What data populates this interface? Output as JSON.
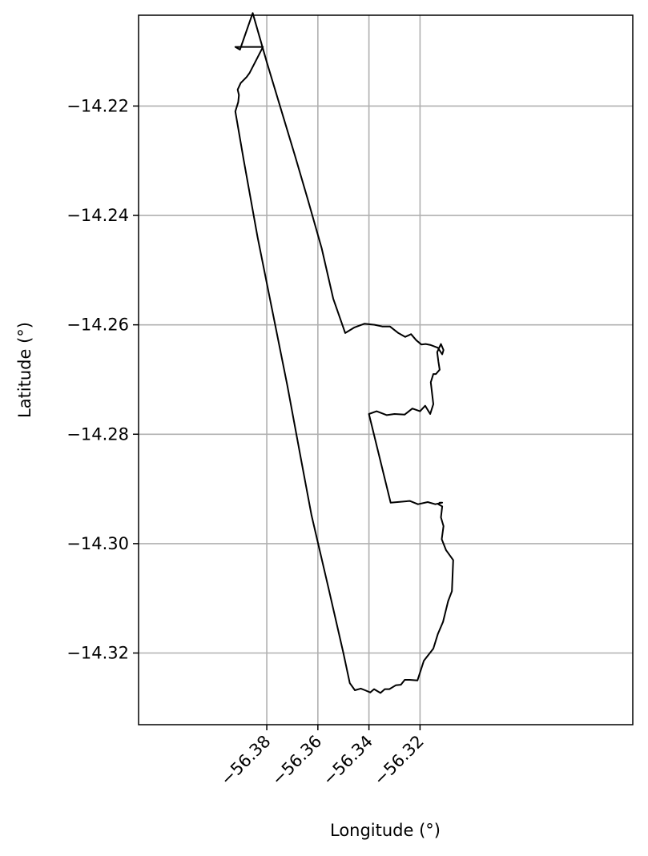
{
  "chart_data": {
    "type": "line",
    "title": "",
    "xlabel": "Longitude (°)",
    "ylabel": "Latitude (°)",
    "xlim": [
      -56.4302,
      -56.2367
    ],
    "ylim": [
      -14.3331,
      -14.2034
    ],
    "xticks": [
      -56.38,
      -56.36,
      -56.34,
      -56.32
    ],
    "xtick_labels": [
      "−56.38",
      "−56.36",
      "−56.34",
      "−56.32"
    ],
    "yticks": [
      -14.22,
      -14.24,
      -14.26,
      -14.28,
      -14.3,
      -14.32
    ],
    "ytick_labels": [
      "−14.22",
      "−14.24",
      "−14.26",
      "−14.28",
      "−14.30",
      "−14.32"
    ],
    "grid": true,
    "line_color": "#000000",
    "grid_color": "#b0b0b0",
    "series": [
      {
        "x": [
          -56.3815,
          -56.3848,
          -56.3868,
          -56.3879,
          -56.3902,
          -56.3914,
          -56.3909,
          -56.3912,
          -56.3923,
          -56.389,
          -56.3836,
          -56.378,
          -56.372,
          -56.3665,
          -56.3625,
          -56.356,
          -56.35,
          -56.3475,
          -56.3455,
          -56.3432,
          -56.3415,
          -56.3395,
          -56.338,
          -56.3355,
          -56.3338,
          -56.332,
          -56.3295,
          -56.3275,
          -56.326,
          -56.324,
          -56.321,
          -56.3185,
          -56.3148,
          -56.313,
          -56.311,
          -56.309,
          -56.3075,
          -56.307,
          -56.3098,
          -56.3115,
          -56.3108,
          -56.3118,
          -56.3113,
          -56.3128,
          -56.3123,
          -56.3113,
          -56.314,
          -56.317,
          -56.3208,
          -56.324,
          -56.3315,
          -56.34,
          -56.337,
          -56.333,
          -56.33,
          -56.326,
          -56.323,
          -56.32,
          -56.318,
          -56.316,
          -56.3148,
          -56.3158,
          -56.3148,
          -56.3138,
          -56.3123,
          -56.3128,
          -56.3133,
          -56.3118,
          -56.3108,
          -56.3113,
          -56.313,
          -56.3158,
          -56.3178,
          -56.3195,
          -56.3215,
          -56.3235,
          -56.3258,
          -56.3285,
          -56.3318,
          -56.3348,
          -56.3378,
          -56.3418,
          -56.3458,
          -56.3493,
          -56.354,
          -56.3585,
          -56.364,
          -56.369,
          -56.3745,
          -56.38,
          -56.3855,
          -56.3905,
          -56.3923
        ],
        "y": [
          -14.2092,
          -14.2122,
          -14.214,
          -14.2147,
          -14.2158,
          -14.217,
          -14.218,
          -14.2193,
          -14.221,
          -14.23,
          -14.244,
          -14.257,
          -14.271,
          -14.2848,
          -14.2948,
          -14.3078,
          -14.32,
          -14.3255,
          -14.3268,
          -14.3265,
          -14.3268,
          -14.3272,
          -14.3266,
          -14.3273,
          -14.3266,
          -14.3266,
          -14.3259,
          -14.3258,
          -14.3249,
          -14.3249,
          -14.325,
          -14.3214,
          -14.3192,
          -14.3165,
          -14.3143,
          -14.3105,
          -14.3087,
          -14.303,
          -14.3012,
          -14.2992,
          -14.2968,
          -14.2952,
          -14.2932,
          -14.2928,
          -14.2925,
          -14.2925,
          -14.2928,
          -14.2924,
          -14.2928,
          -14.2922,
          -14.2925,
          -14.2763,
          -14.2758,
          -14.2765,
          -14.2763,
          -14.2764,
          -14.2753,
          -14.2758,
          -14.2748,
          -14.2763,
          -14.2745,
          -14.2705,
          -14.269,
          -14.269,
          -14.2682,
          -14.2667,
          -14.265,
          -14.2635,
          -14.2646,
          -14.2654,
          -14.2642,
          -14.2637,
          -14.2635,
          -14.2636,
          -14.2628,
          -14.2617,
          -14.2622,
          -14.2615,
          -14.2603,
          -14.2603,
          -14.26,
          -14.2598,
          -14.2605,
          -14.2615,
          -14.2552,
          -14.246,
          -14.237,
          -14.229,
          -14.2205,
          -14.212,
          -14.203,
          -14.2097,
          -14.2092
        ]
      }
    ]
  }
}
